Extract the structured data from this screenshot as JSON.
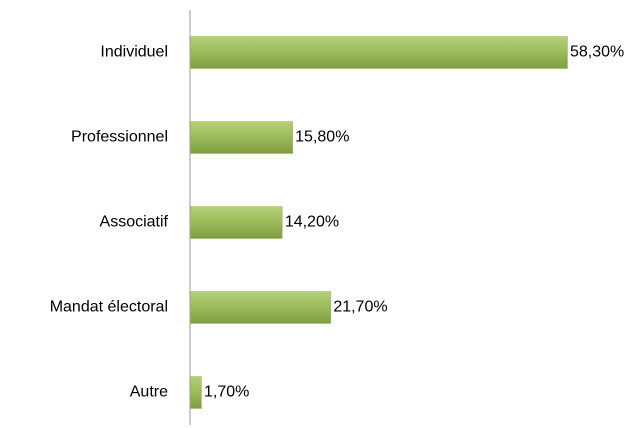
{
  "chart_data": {
    "type": "bar",
    "orientation": "horizontal",
    "categories": [
      "Individuel",
      "Professionnel",
      "Associatif",
      "Mandat électoral",
      "Autre"
    ],
    "values": [
      58.3,
      15.8,
      14.2,
      21.7,
      1.7
    ],
    "value_labels": [
      "58,30%",
      "15,80%",
      "14,20%",
      "21,70%",
      "1,70%"
    ],
    "color": "#9bbb59"
  }
}
